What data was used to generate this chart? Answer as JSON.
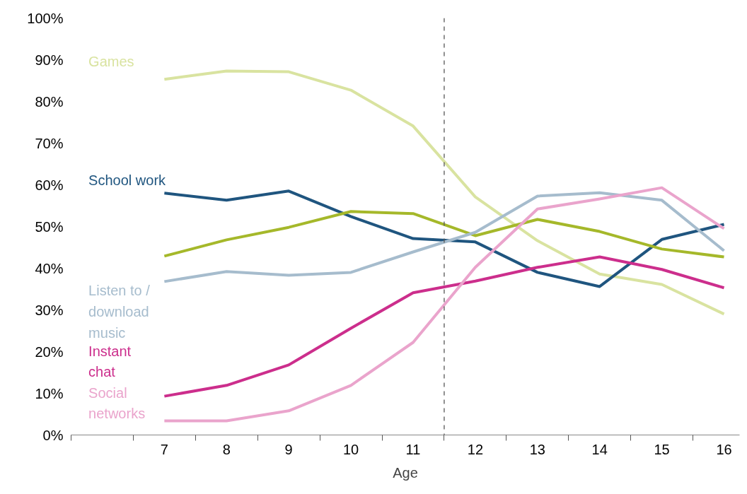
{
  "chart_data": {
    "type": "line",
    "xlabel": "Age",
    "x": [
      7,
      8,
      9,
      10,
      11,
      12,
      13,
      14,
      15,
      16
    ],
    "series": [
      {
        "name": "Games",
        "color": "#d9e3a0",
        "values": [
          85.3,
          87.3,
          87.1,
          82.7,
          74.1,
          57.1,
          46.6,
          38.6,
          36.1,
          29.0
        ]
      },
      {
        "name": "School work",
        "color": "#1f557f",
        "values": [
          58.0,
          56.3,
          58.5,
          52.4,
          47.1,
          46.3,
          39.0,
          35.6,
          46.9,
          50.5
        ]
      },
      {
        "color": "#a5b82a",
        "values": [
          42.9,
          46.8,
          49.8,
          53.6,
          53.1,
          47.8,
          51.7,
          48.8,
          44.6,
          42.7
        ]
      },
      {
        "name": "Listen to / download music",
        "color": "#a6bccd",
        "values": [
          36.8,
          39.2,
          38.3,
          39.0,
          43.9,
          48.6,
          57.3,
          58.1,
          56.3,
          44.2
        ]
      },
      {
        "name": "Instant chat",
        "color": "#cc2e8c",
        "values": [
          9.3,
          11.9,
          16.8,
          25.6,
          34.1,
          36.9,
          40.2,
          42.7,
          39.7,
          35.3
        ]
      },
      {
        "name": "Social networks",
        "color": "#eaa4cc",
        "values": [
          3.4,
          3.4,
          5.8,
          11.9,
          22.2,
          40.2,
          54.2,
          56.6,
          59.3,
          49.5
        ]
      }
    ],
    "xlim": [
      5.5,
      16.25
    ],
    "xticks": [
      {
        "value": 5.5,
        "label": null
      },
      {
        "value": 6.5,
        "label": null
      },
      {
        "value": 7.5,
        "label": null
      },
      {
        "value": 8.5,
        "label": null
      },
      {
        "value": 9.5,
        "label": null
      },
      {
        "value": 10.5,
        "label": null
      },
      {
        "value": 11.5,
        "label": null
      },
      {
        "value": 12.5,
        "label": null
      },
      {
        "value": 13.5,
        "label": null
      },
      {
        "value": 14.5,
        "label": null
      },
      {
        "value": 15.5,
        "label": null
      },
      7,
      8,
      9,
      10,
      11,
      12,
      13,
      14,
      15,
      16
    ],
    "ylim": [
      0,
      100
    ],
    "yticks": [
      {
        "value": 0,
        "label": "0%"
      },
      {
        "value": 10,
        "label": "10%"
      },
      {
        "value": 20,
        "label": "20%"
      },
      {
        "value": 30,
        "label": "30%"
      },
      {
        "value": 40,
        "label": "40%"
      },
      {
        "value": 50,
        "label": "50%"
      },
      {
        "value": 60,
        "label": "60%"
      },
      {
        "value": 70,
        "label": "70%"
      },
      {
        "value": 80,
        "label": "80%"
      },
      {
        "value": 90,
        "label": "90%"
      },
      {
        "value": 100,
        "label": "100%"
      }
    ],
    "ref_lines": [
      {
        "axis": "x",
        "value": 11.5,
        "color": "#555555",
        "line_style": "dashed"
      }
    ],
    "grid": false,
    "legend": false,
    "marker": "none",
    "line_style": "solid"
  }
}
